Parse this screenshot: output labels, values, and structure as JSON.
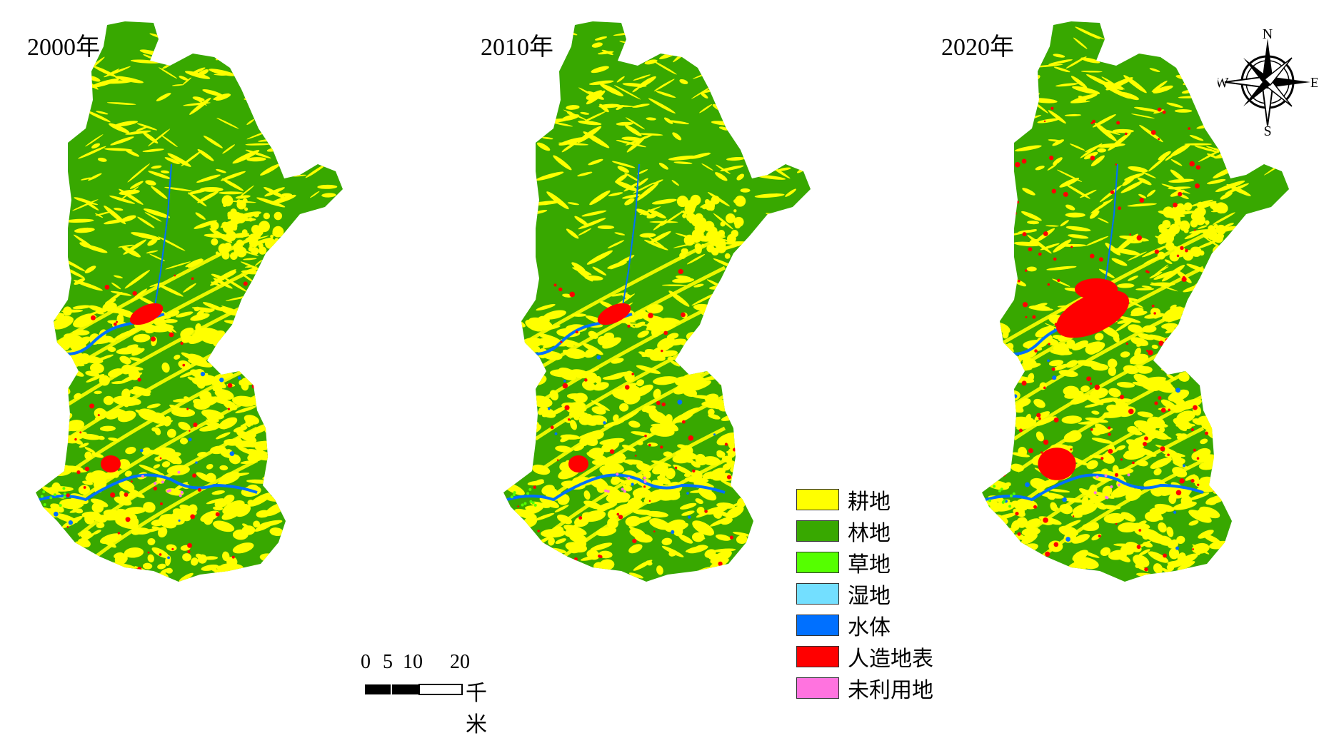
{
  "panels": [
    {
      "year": "2000年",
      "urban_level": 0.0
    },
    {
      "year": "2010年",
      "urban_level": 0.0
    },
    {
      "year": "2020年",
      "urban_level": 1.0
    }
  ],
  "legend": [
    {
      "label": "耕地",
      "color": "#ffff00"
    },
    {
      "label": "林地",
      "color": "#38a800"
    },
    {
      "label": "草地",
      "color": "#55ff00"
    },
    {
      "label": "湿地",
      "color": "#73dfff"
    },
    {
      "label": "水体",
      "color": "#0070ff"
    },
    {
      "label": "人造地表",
      "color": "#ff0000"
    },
    {
      "label": "未利用地",
      "color": "#ff73df"
    }
  ],
  "scale_bar": {
    "ticks": [
      "0",
      "5",
      "10",
      "20"
    ],
    "unit": "千米"
  },
  "compass": {
    "n": "N",
    "s": "S",
    "e": "E",
    "w": "W"
  }
}
